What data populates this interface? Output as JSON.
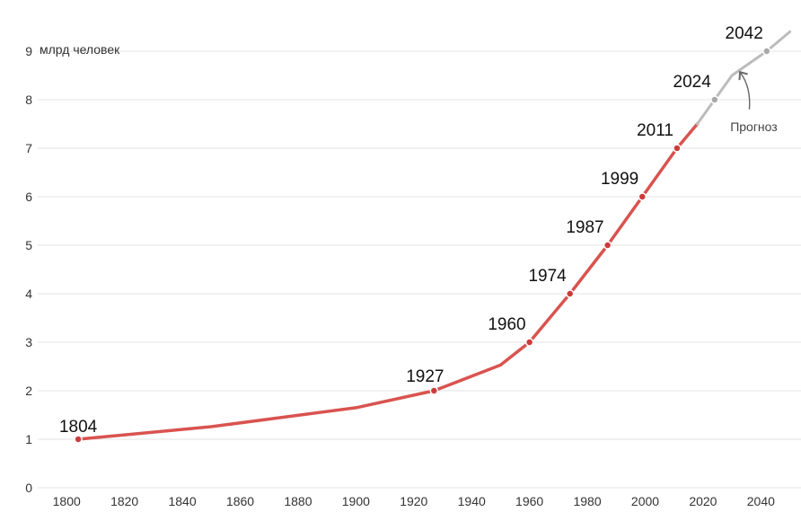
{
  "chart_data": {
    "type": "line",
    "y_unit_label": "млрд человек",
    "xlim": [
      1790,
      2052
    ],
    "ylim": [
      0,
      9.5
    ],
    "x_ticks": [
      1800,
      1820,
      1840,
      1860,
      1880,
      1900,
      1920,
      1940,
      1960,
      1980,
      2000,
      2020,
      2040
    ],
    "y_ticks": [
      0,
      1,
      2,
      3,
      4,
      5,
      6,
      7,
      8,
      9
    ],
    "grid": true,
    "colors": {
      "actual": "#d9534f",
      "forecast": "#bcbcbc",
      "grid": "#e3e3e3",
      "text": "#333333"
    },
    "series": [
      {
        "kind": "actual",
        "x": [
          1804,
          1850,
          1900,
          1927,
          1950,
          1960,
          1974,
          1987,
          1999,
          2011,
          2018
        ],
        "y": [
          1.0,
          1.26,
          1.65,
          2.0,
          2.53,
          3.0,
          4.0,
          5.0,
          6.0,
          7.0,
          7.5
        ]
      },
      {
        "kind": "forecast",
        "x": [
          2018,
          2024,
          2030,
          2042,
          2050
        ],
        "y": [
          7.5,
          8.0,
          8.5,
          9.0,
          9.4
        ]
      }
    ],
    "milestones": [
      {
        "year": "1804",
        "x": 1804,
        "y": 1,
        "label_side": "above"
      },
      {
        "year": "1927",
        "x": 1927,
        "y": 2,
        "label_side": "above-left"
      },
      {
        "year": "1960",
        "x": 1960,
        "y": 3,
        "label_side": "left"
      },
      {
        "year": "1974",
        "x": 1974,
        "y": 4,
        "label_side": "left"
      },
      {
        "year": "1987",
        "x": 1987,
        "y": 5,
        "label_side": "left"
      },
      {
        "year": "1999",
        "x": 1999,
        "y": 6,
        "label_side": "left"
      },
      {
        "year": "2011",
        "x": 2011,
        "y": 7,
        "label_side": "left"
      },
      {
        "year": "2024",
        "x": 2024,
        "y": 8,
        "label_side": "left"
      },
      {
        "year": "2042",
        "x": 2042,
        "y": 9,
        "label_side": "left"
      }
    ],
    "annotations": [
      {
        "text": "Прогноз"
      }
    ]
  }
}
